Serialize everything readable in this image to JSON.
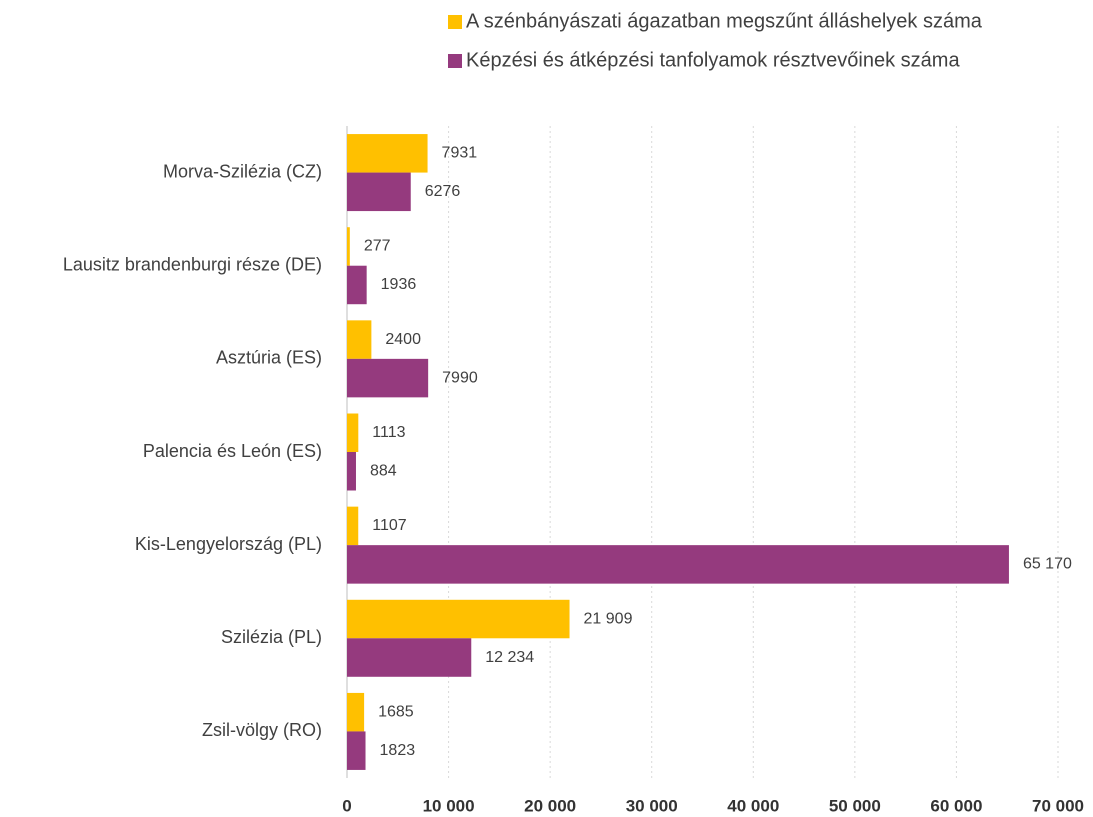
{
  "chart_data": {
    "type": "hbar",
    "categories": [
      "Morva-Szilézia (CZ)",
      "Lausitz brandenburgi része (DE)",
      "Asztúria (ES)",
      "Palencia és León (ES)",
      "Kis-Lengyelország (PL)",
      "Szilézia (PL)",
      "Zsil-völgy (RO)"
    ],
    "series": [
      {
        "name": "A szénbányászati ágazatban megszűnt álláshelyek száma",
        "color": "#FFC000",
        "values": [
          7931,
          277,
          2400,
          1113,
          1107,
          21909,
          1685
        ],
        "value_labels": [
          "7931",
          "277",
          "2400",
          "1113",
          "1107",
          "21 909",
          "1685"
        ]
      },
      {
        "name": "Képzési és átképzési tanfolyamok résztvevőinek száma",
        "color": "#953A7E",
        "values": [
          6276,
          1936,
          7990,
          884,
          65170,
          12234,
          1823
        ],
        "value_labels": [
          "6276",
          "1936",
          "7990",
          "884",
          "65 170",
          "12 234",
          "1823"
        ]
      }
    ],
    "xlim": [
      0,
      70000
    ],
    "xticks": [
      0,
      {
        "value": 10000,
        "label": "10 000"
      },
      {
        "value": 20000,
        "label": "20 000"
      },
      {
        "value": 30000,
        "label": "30 000"
      },
      {
        "value": 40000,
        "label": "40 000"
      },
      {
        "value": 50000,
        "label": "50 000"
      },
      {
        "value": 60000,
        "label": "60 000"
      },
      {
        "value": 70000,
        "label": "70 000"
      }
    ],
    "grid": true,
    "legend": "top-right"
  }
}
